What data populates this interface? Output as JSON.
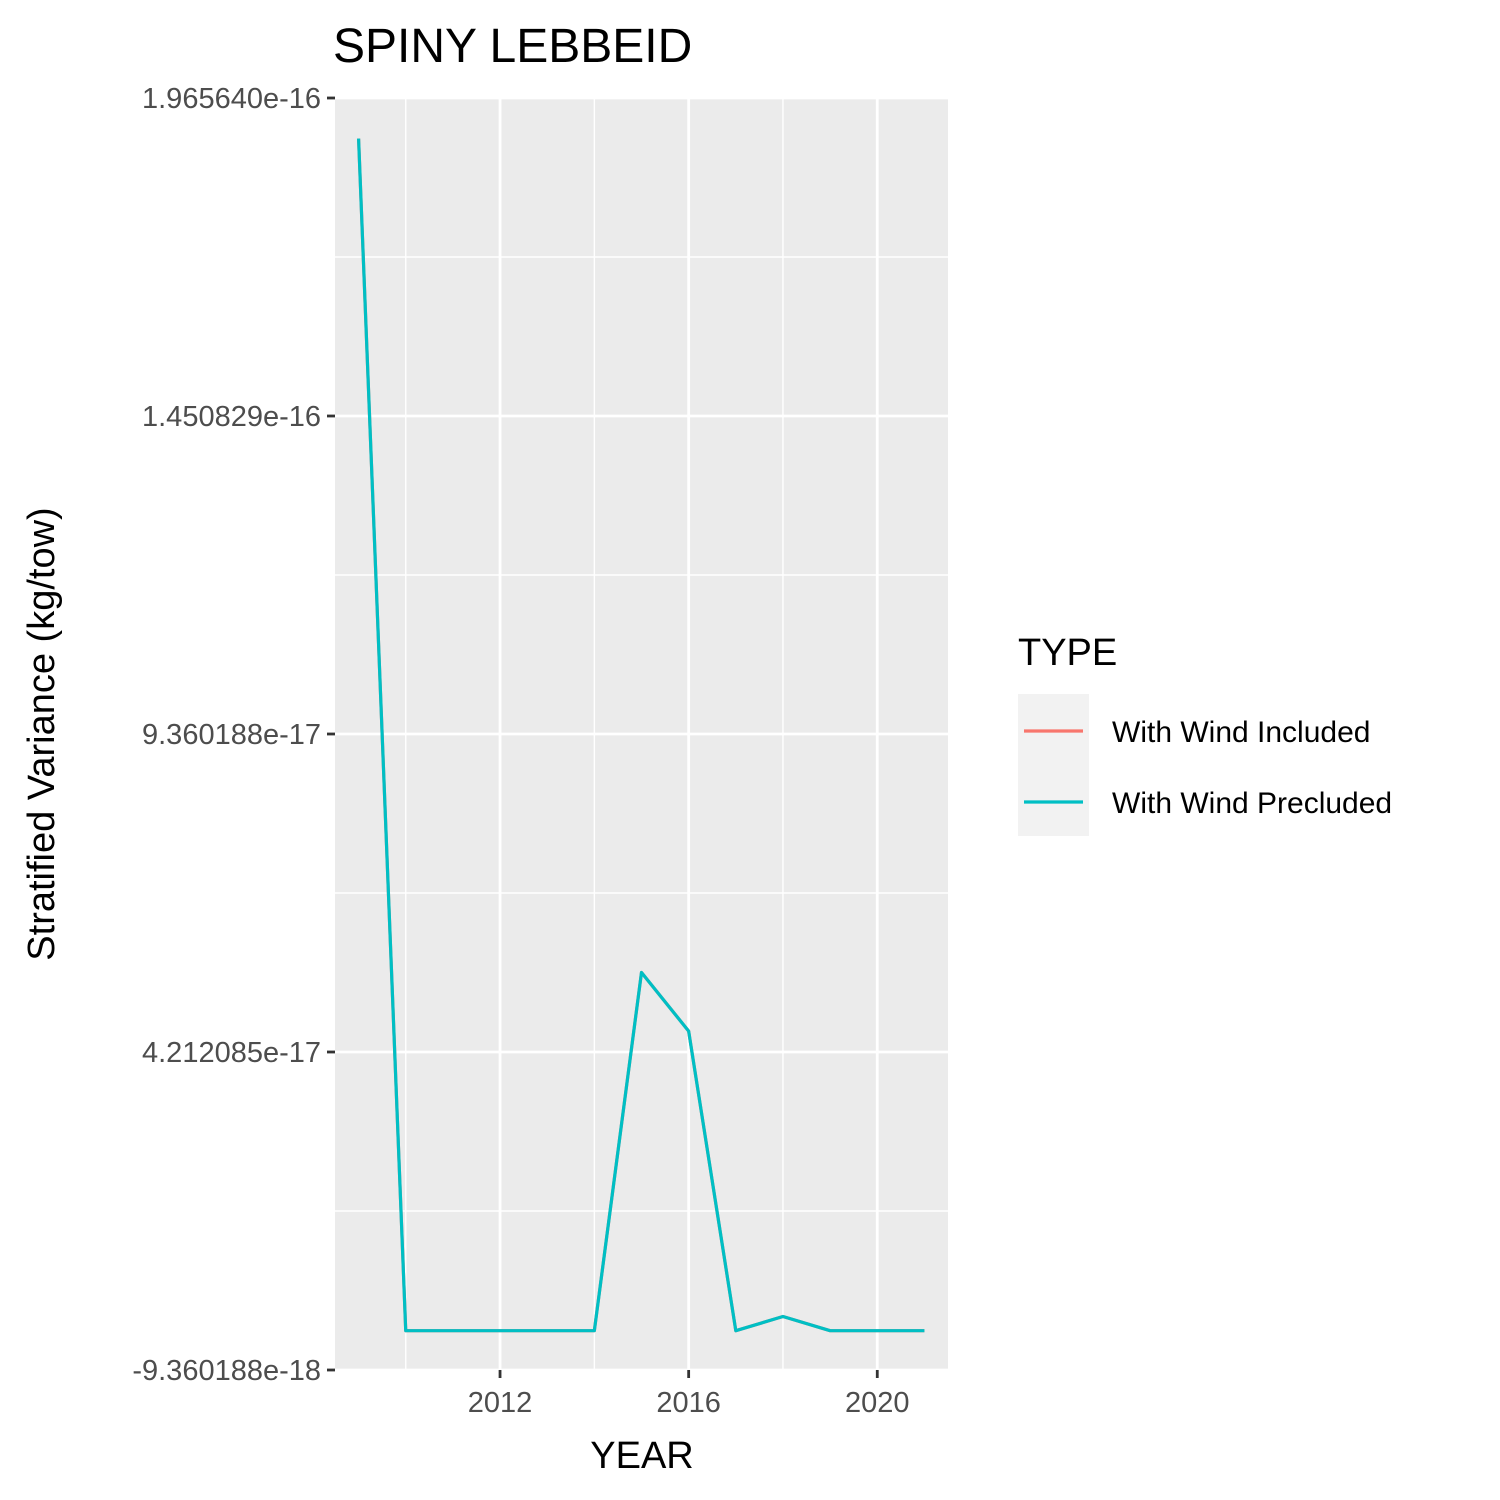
{
  "chart_data": {
    "type": "line",
    "title": "SPINY LEBBEID",
    "xlabel": "YEAR",
    "ylabel": "Stratified Variance (kg/tow)",
    "xlim": [
      2008.5,
      2021.5
    ],
    "ylim": [
      -9.360188e-18,
      1.96564e-16
    ],
    "x_ticks": [
      2012,
      2016,
      2020
    ],
    "x_tick_labels": [
      "2012",
      "2016",
      "2020"
    ],
    "y_ticks": [
      -9.360188e-18,
      4.212085e-17,
      9.360188e-17,
      1.450829e-16,
      1.96564e-16
    ],
    "y_tick_labels": [
      "-9.360188e-18",
      "4.212085e-17",
      "9.360188e-17",
      "1.450829e-16",
      "1.965640e-16"
    ],
    "grid": true,
    "legend": {
      "title": "TYPE",
      "position": "right",
      "entries": [
        {
          "label": "With Wind Included",
          "color": "#F8766D"
        },
        {
          "label": "With Wind Precluded",
          "color": "#00BFC4"
        }
      ]
    },
    "series": [
      {
        "name": "With Wind Included",
        "color": "#F8766D",
        "x": [
          2009,
          2010,
          2011,
          2012,
          2013,
          2014,
          2015,
          2016,
          2017,
          2018,
          2019,
          2020,
          2021
        ],
        "values": [
          1.9e-16,
          -3e-18,
          -3e-18,
          -3e-18,
          -3e-18,
          -3e-18,
          5.5e-17,
          4.55e-17,
          -3e-18,
          -7e-19,
          -3e-18,
          -3e-18,
          -3e-18
        ]
      },
      {
        "name": "With Wind Precluded",
        "color": "#00BFC4",
        "x": [
          2009,
          2010,
          2011,
          2012,
          2013,
          2014,
          2015,
          2016,
          2017,
          2018,
          2019,
          2020,
          2021
        ],
        "values": [
          1.9e-16,
          -3e-18,
          -3e-18,
          -3e-18,
          -3e-18,
          -3e-18,
          5.5e-17,
          4.55e-17,
          -3e-18,
          -7e-19,
          -3e-18,
          -3e-18,
          -3e-18
        ]
      }
    ]
  }
}
